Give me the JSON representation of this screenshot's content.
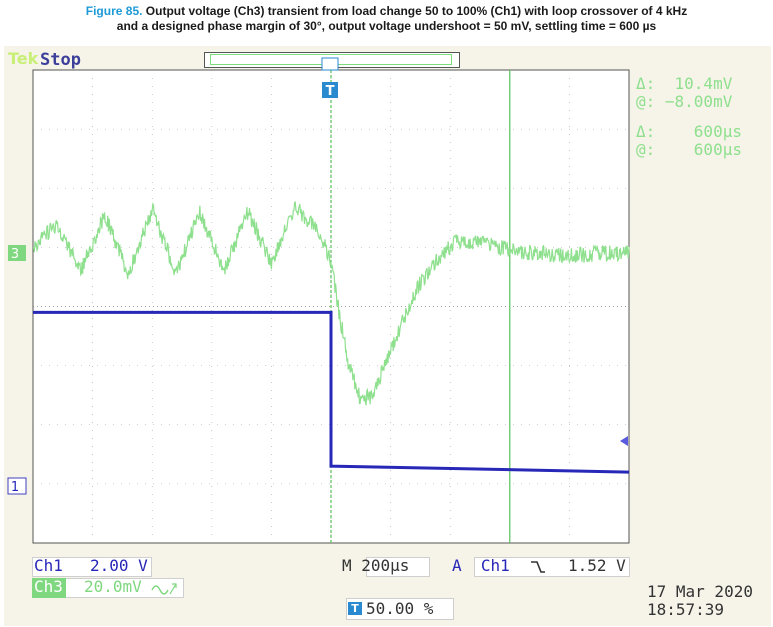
{
  "figure": {
    "number": "Figure 85.",
    "caption_line1": "Output voltage (Ch3) transient from load change 50 to 100% (Ch1) with loop crossover of 4 kHz",
    "caption_line2": "and a designed phase margin of 30°, output voltage undershoot = 50 mV, settling time = 600 µs"
  },
  "scope": {
    "brand": "Tek",
    "run_state": "Stop",
    "trigger_marker": "T",
    "ch3_marker": "3",
    "ch1_marker": "1"
  },
  "cursors": {
    "delta_v": "Δ:  10.4mV",
    "at_v": "@: −8.00mV",
    "delta_t": "Δ:    600µs",
    "at_t": "@:    600µs"
  },
  "bottom": {
    "ch1_name": "Ch1",
    "ch1_scale": "2.00 V",
    "ch3_name": "Ch3",
    "ch3_scale": "20.0mV",
    "ch3_bw_icon": "bandwidth-limit-icon",
    "timebase": "M 200µs",
    "trigger_label": "A  Ch1",
    "trigger_slope_icon": "falling-edge-icon",
    "trigger_level": "1.52 V",
    "trigger_position": "50.00 %",
    "date": "17 Mar 2020",
    "time": "18:57:39"
  },
  "colors": {
    "ch1": "#2727b8",
    "ch3": "#8ee08e",
    "grid": "#a0a0a0",
    "caption_accent": "#1e9ad6"
  },
  "chart_data": {
    "type": "line",
    "time_per_div_us": 200,
    "trigger_time_us": 0,
    "xlim_us": [
      -1000,
      1000
    ],
    "series": [
      {
        "name": "Ch3",
        "volts_per_div_mV": 20,
        "points_us_mV": [
          [
            -1000,
            0
          ],
          [
            -920,
            8
          ],
          [
            -840,
            -8
          ],
          [
            -760,
            11
          ],
          [
            -680,
            -9
          ],
          [
            -600,
            13
          ],
          [
            -520,
            -9
          ],
          [
            -440,
            12
          ],
          [
            -360,
            -8
          ],
          [
            -280,
            12
          ],
          [
            -200,
            -5
          ],
          [
            -120,
            14
          ],
          [
            -40,
            5
          ],
          [
            0,
            -4
          ],
          [
            20,
            -18
          ],
          [
            60,
            -40
          ],
          [
            100,
            -52
          ],
          [
            140,
            -50
          ],
          [
            180,
            -40
          ],
          [
            240,
            -25
          ],
          [
            300,
            -12
          ],
          [
            360,
            -4
          ],
          [
            420,
            2
          ],
          [
            500,
            2
          ],
          [
            600,
            -1
          ],
          [
            700,
            -2
          ],
          [
            800,
            -3
          ],
          [
            900,
            -2
          ],
          [
            1000,
            -2
          ]
        ]
      },
      {
        "name": "Ch1",
        "volts_per_div_V": 2,
        "points_us_div": [
          [
            -1000,
            2.6
          ],
          [
            0,
            2.6
          ],
          [
            0,
            0
          ],
          [
            1000,
            -0.1
          ]
        ]
      }
    ],
    "cursor_times_us": [
      0,
      600
    ]
  }
}
